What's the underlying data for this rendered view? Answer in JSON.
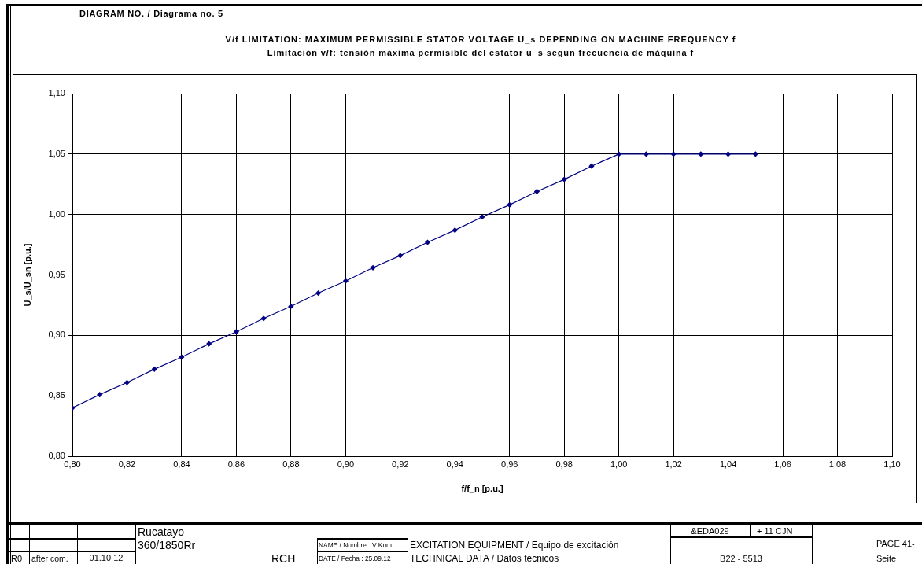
{
  "chart_data": {
    "type": "line",
    "title": "V/f LIMITATION: MAXIMUM PERMISSIBLE STATOR VOLTAGE U_s DEPENDING ON MACHINE FREQUENCY f",
    "subtitle": "Limitación v/f: tensión máxima permisible del estator u_s según frecuencia de máquina f",
    "xlabel": "f/f_n [p.u.]",
    "ylabel": "U_s/U_sn [p.u.]",
    "x": [
      0.8,
      0.81,
      0.82,
      0.83,
      0.84,
      0.85,
      0.86,
      0.87,
      0.88,
      0.89,
      0.9,
      0.91,
      0.92,
      0.93,
      0.94,
      0.95,
      0.96,
      0.97,
      0.98,
      0.99,
      1.0,
      1.01,
      1.02,
      1.03,
      1.04,
      1.05
    ],
    "series": [
      {
        "color": "#000080",
        "values": [
          0.84,
          0.851,
          0.861,
          0.872,
          0.882,
          0.893,
          0.903,
          0.914,
          0.924,
          0.935,
          0.945,
          0.956,
          0.966,
          0.977,
          0.987,
          0.998,
          1.008,
          1.019,
          1.029,
          1.04,
          1.05,
          1.05,
          1.05,
          1.05,
          1.05,
          1.05
        ]
      }
    ],
    "xlim": [
      0.8,
      1.1
    ],
    "xticks": [
      {
        "value": 0.8,
        "label": "0,80"
      },
      {
        "value": 0.82,
        "label": "0,82"
      },
      {
        "value": 0.84,
        "label": "0,84"
      },
      {
        "value": 0.86,
        "label": "0,86"
      },
      {
        "value": 0.88,
        "label": "0,88"
      },
      {
        "value": 0.9,
        "label": "0,90"
      },
      {
        "value": 0.92,
        "label": "0,92"
      },
      {
        "value": 0.94,
        "label": "0,94"
      },
      {
        "value": 0.96,
        "label": "0,96"
      },
      {
        "value": 0.98,
        "label": "0,98"
      },
      {
        "value": 1.0,
        "label": "1,00"
      },
      {
        "value": 1.02,
        "label": "1,02"
      },
      {
        "value": 1.04,
        "label": "1,04"
      },
      {
        "value": 1.06,
        "label": "1,06"
      },
      {
        "value": 1.08,
        "label": "1,08"
      },
      {
        "value": 1.1,
        "label": "1,10"
      }
    ],
    "ylim": [
      0.8,
      1.1
    ],
    "yticks": [
      {
        "value": 0.8,
        "label": "0,80"
      },
      {
        "value": 0.85,
        "label": "0,85"
      },
      {
        "value": 0.9,
        "label": "0,90"
      },
      {
        "value": 0.95,
        "label": "0,95"
      },
      {
        "value": 1.0,
        "label": "1,00"
      },
      {
        "value": 1.05,
        "label": "1,05"
      },
      {
        "value": 1.1,
        "label": "1,10"
      }
    ],
    "grid": true,
    "marker": "diamond",
    "line_style": "solid",
    "annotations": [
      "DIAGRAM NO. / Diagrama no. 5",
      "Rucatayo",
      "360/1850Rr",
      "&EDA029",
      "+ 11 CJN",
      "NAME / Nombre : V Kum",
      "EXCITATION EQUIPMENT / Equipo de excitación",
      "PAGE 41-",
      "R0",
      "after com.",
      "01.10.12",
      "RCH",
      "DATE / Fecha : 25.09.12",
      "TECHNICAL DATA / Datos técnicos",
      "B22 - 5513",
      "Seite"
    ]
  }
}
